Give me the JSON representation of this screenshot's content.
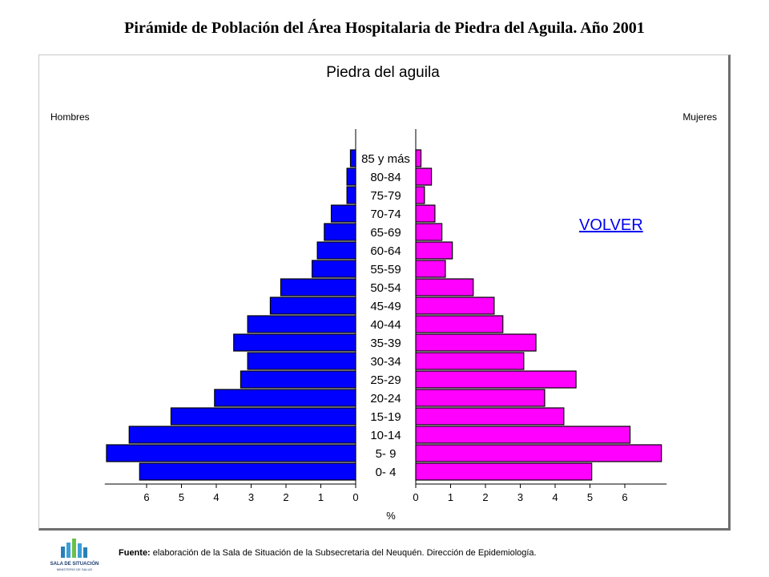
{
  "slide": {
    "title": "Pirámide de Población del Área Hospitalaria de Piedra del Aguila. Año 2001",
    "volver_label": "VOLVER",
    "source_label": "Fuente:",
    "source_text": " elaboración de la Sala de Situación de la Subsecretaria del Neuquén. Dirección de Epidemiología.",
    "logo_label": "SALA DE SITUACIÓN",
    "logo_sub": "MINISTERIO DE SALUD"
  },
  "chart_data": {
    "type": "bar",
    "orientation": "horizontal-pyramid",
    "title": "Piedra del aguila",
    "left_label": "Hombres",
    "right_label": "Mujeres",
    "xlabel": "%",
    "categories": [
      "85 y más",
      "80-84",
      "75-79",
      "70-74",
      "65-69",
      "60-64",
      "55-59",
      "50-54",
      "45-49",
      "40-44",
      "35-39",
      "30-34",
      "25-29",
      "20-24",
      "15-19",
      "10-14",
      "5- 9",
      "0- 4"
    ],
    "series": [
      {
        "name": "Hombres",
        "color": "#0000ff",
        "values": [
          0.15,
          0.25,
          0.25,
          0.7,
          0.9,
          1.1,
          1.25,
          2.15,
          2.45,
          3.1,
          3.5,
          3.1,
          3.3,
          4.05,
          5.3,
          6.5,
          7.15,
          6.2
        ]
      },
      {
        "name": "Mujeres",
        "color": "#ff00ff",
        "values": [
          0.15,
          0.45,
          0.25,
          0.55,
          0.75,
          1.05,
          0.85,
          1.65,
          2.25,
          2.5,
          3.45,
          3.1,
          4.6,
          3.7,
          4.25,
          6.15,
          7.05,
          5.05
        ]
      }
    ],
    "xticks": [
      "6",
      "5",
      "4",
      "3",
      "2",
      "1",
      "0"
    ],
    "xticks_right": [
      "0",
      "1",
      "2",
      "3",
      "4",
      "5",
      "6"
    ],
    "xlim": [
      0,
      7.2
    ],
    "grid": false
  }
}
